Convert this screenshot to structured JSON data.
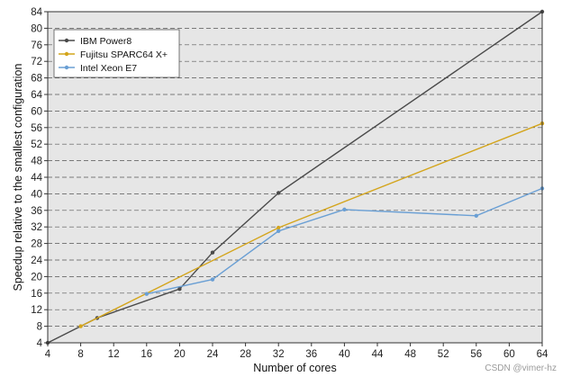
{
  "chart_data": {
    "type": "line",
    "xlabel": "Number of cores",
    "ylabel": "Speedup relative to the smallest configuration",
    "xlim": [
      4,
      64
    ],
    "ylim": [
      4,
      84
    ],
    "x_ticks": [
      4,
      8,
      12,
      16,
      20,
      24,
      28,
      32,
      36,
      40,
      44,
      48,
      52,
      56,
      60,
      64
    ],
    "y_ticks": [
      4,
      8,
      12,
      16,
      20,
      24,
      28,
      32,
      36,
      40,
      44,
      48,
      52,
      56,
      60,
      64,
      68,
      72,
      76,
      80,
      84
    ],
    "grid": "horizontal dashed",
    "legend_position": "top-left",
    "series": [
      {
        "name": "IBM Power8",
        "color": "#4a4a4a",
        "points": [
          {
            "x": 4,
            "y": 4
          },
          {
            "x": 10,
            "y": 10
          },
          {
            "x": 20,
            "y": 17
          },
          {
            "x": 24,
            "y": 25.8
          },
          {
            "x": 32,
            "y": 40.2
          },
          {
            "x": 64,
            "y": 84
          }
        ]
      },
      {
        "name": "Fujitsu SPARC64 X+",
        "color": "#d4a51c",
        "points": [
          {
            "x": 8,
            "y": 8
          },
          {
            "x": 32,
            "y": 31.8
          },
          {
            "x": 64,
            "y": 57
          }
        ]
      },
      {
        "name": "Intel Xeon E7",
        "color": "#6a9fd4",
        "points": [
          {
            "x": 16,
            "y": 15.8
          },
          {
            "x": 24,
            "y": 19.3
          },
          {
            "x": 32,
            "y": 31
          },
          {
            "x": 40,
            "y": 36.2
          },
          {
            "x": 56,
            "y": 34.7
          },
          {
            "x": 64,
            "y": 41.3
          }
        ]
      }
    ]
  },
  "watermark": "CSDN @vimer-hz"
}
